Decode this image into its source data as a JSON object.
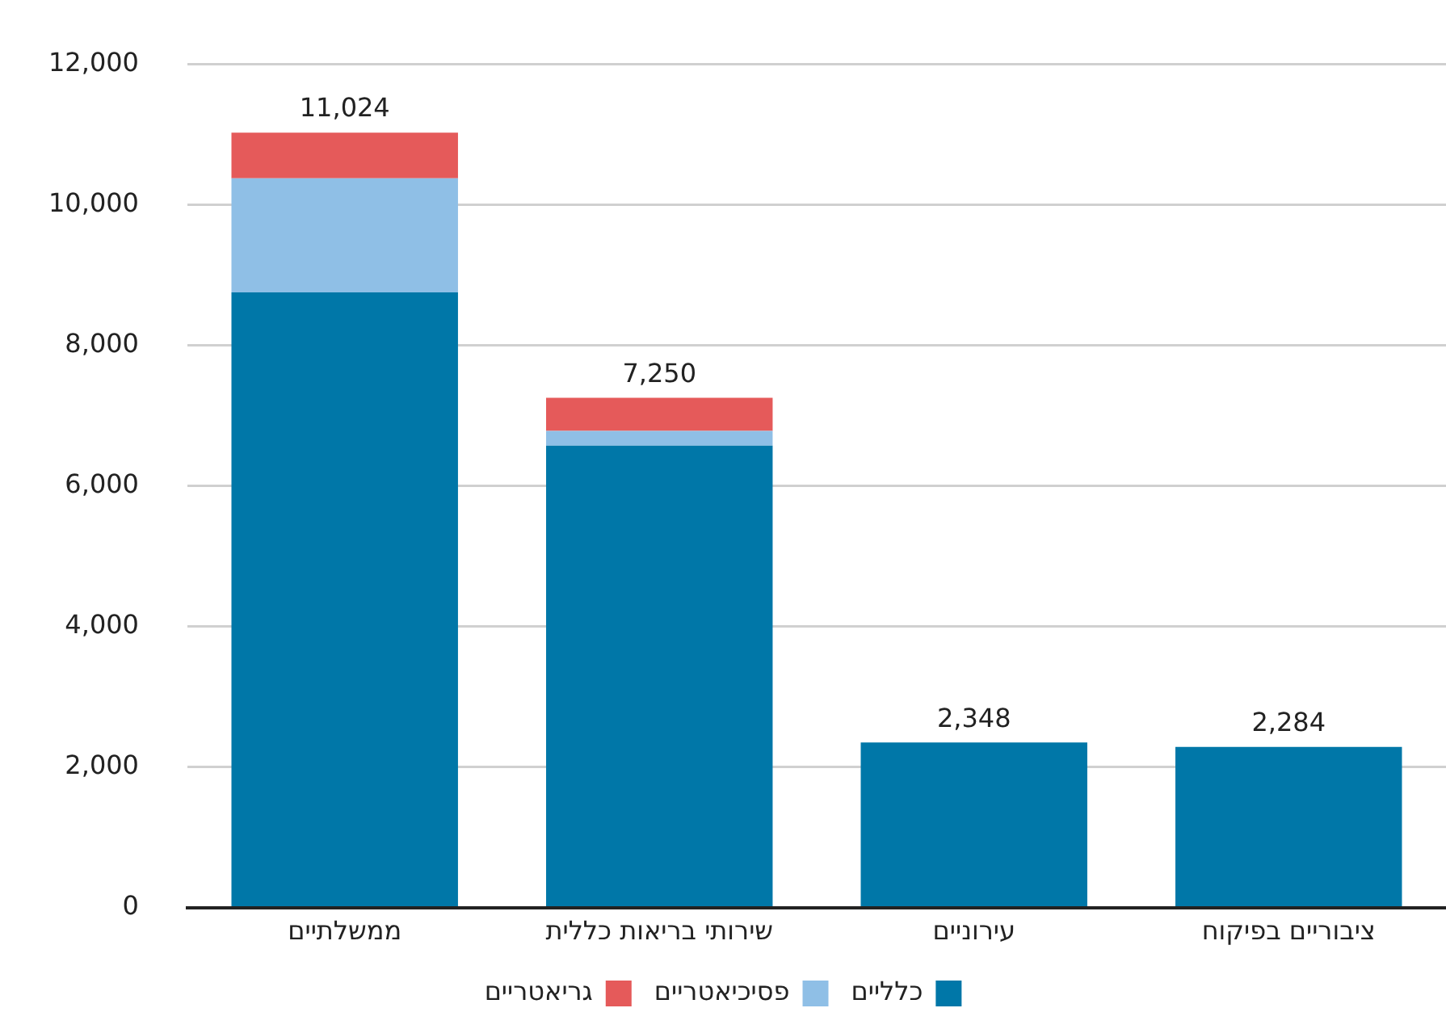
{
  "chart_data": {
    "type": "bar",
    "stacked": true,
    "categories": [
      "ממשלתיים",
      "שירותי בריאות כללית",
      "עירוניים",
      "ציבוריים בפיקוח"
    ],
    "series": [
      {
        "name": "כלליים",
        "color": "#0077a8",
        "values": [
          8750,
          6570,
          2348,
          2284
        ]
      },
      {
        "name": "פסיכיאטריים",
        "color": "#8fbfe6",
        "values": [
          1624,
          210,
          null,
          null
        ]
      },
      {
        "name": "גריאטריים",
        "color": "#e55a5a",
        "values": [
          650,
          470,
          null,
          null
        ]
      }
    ],
    "totals": [
      "11,024",
      "7,250",
      "2,348",
      "2,284"
    ],
    "ylim": [
      0,
      12000
    ],
    "yticks": [
      {
        "value": 0,
        "label": "0"
      },
      {
        "value": 2000,
        "label": "2,000"
      },
      {
        "value": 4000,
        "label": "4,000"
      },
      {
        "value": 6000,
        "label": "6,000"
      },
      {
        "value": 8000,
        "label": "8,000"
      },
      {
        "value": 10000,
        "label": "10,000"
      },
      {
        "value": 12000,
        "label": "12,000"
      }
    ],
    "grid": "y",
    "legend": "bottom"
  }
}
